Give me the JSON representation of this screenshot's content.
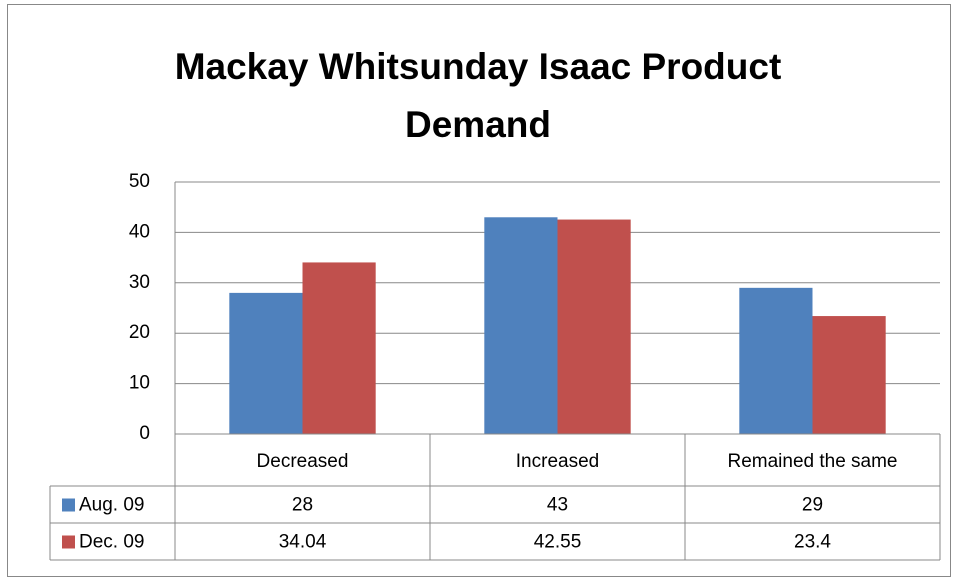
{
  "chart_data": {
    "type": "bar",
    "title": "Mackay Whitsunday Isaac Product Demand",
    "categories": [
      "Decreased",
      "Increased",
      "Remained the same"
    ],
    "series": [
      {
        "name": "Aug. 09",
        "color": "#4f81bd",
        "values": [
          28,
          43,
          29
        ]
      },
      {
        "name": "Dec. 09",
        "color": "#c0504d",
        "values": [
          34.04,
          42.55,
          23.4
        ]
      }
    ],
    "ylim": [
      0,
      50
    ],
    "yticks": [
      0,
      10,
      20,
      30,
      40,
      50
    ],
    "grid": true,
    "data_table": true
  }
}
